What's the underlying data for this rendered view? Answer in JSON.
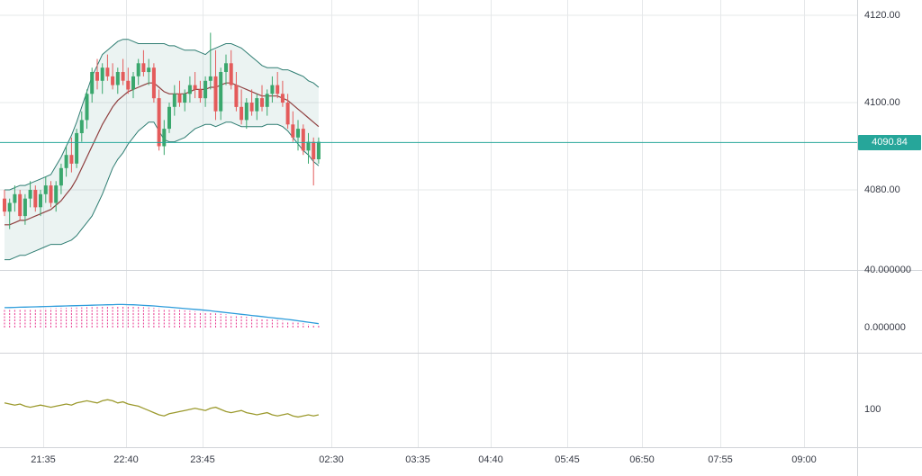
{
  "chart_data": {
    "type": "candlestick",
    "title": "",
    "x_axis": {
      "tick_labels": [
        "21:35",
        "22:40",
        "23:45",
        "02:30",
        "03:35",
        "04:40",
        "05:45",
        "06:50",
        "07:55",
        "09:00"
      ]
    },
    "panels": [
      {
        "name": "price",
        "overlays": [
          "bollinger-bands"
        ],
        "y_ticks": [
          {
            "label": "4120.00",
            "value": 4120
          },
          {
            "label": "4100.00",
            "value": 4100
          },
          {
            "label": "4080.00",
            "value": 4080
          }
        ],
        "last_price_label": "4090.84",
        "last_price": 4090.84,
        "candles_ohlc": [
          [
            4078,
            4080,
            4074,
            4075
          ],
          [
            4075,
            4078,
            4071,
            4077
          ],
          [
            4077,
            4081,
            4075,
            4079
          ],
          [
            4079,
            4080,
            4073,
            4074
          ],
          [
            4074,
            4079,
            4072,
            4078
          ],
          [
            4078,
            4082,
            4076,
            4080
          ],
          [
            4080,
            4081,
            4075,
            4076
          ],
          [
            4076,
            4080,
            4074,
            4079
          ],
          [
            4079,
            4083,
            4077,
            4081
          ],
          [
            4081,
            4082,
            4076,
            4077
          ],
          [
            4077,
            4082,
            4075,
            4081
          ],
          [
            4081,
            4086,
            4079,
            4085
          ],
          [
            4085,
            4090,
            4083,
            4088
          ],
          [
            4088,
            4092,
            4084,
            4086
          ],
          [
            4086,
            4094,
            4085,
            4093
          ],
          [
            4093,
            4098,
            4091,
            4096
          ],
          [
            4096,
            4103,
            4094,
            4102
          ],
          [
            4102,
            4108,
            4100,
            4107
          ],
          [
            4107,
            4110,
            4103,
            4105
          ],
          [
            4105,
            4109,
            4102,
            4108
          ],
          [
            4108,
            4111,
            4105,
            4106
          ],
          [
            4106,
            4109,
            4103,
            4104
          ],
          [
            4104,
            4108,
            4102,
            4107
          ],
          [
            4107,
            4110,
            4104,
            4105
          ],
          [
            4105,
            4108,
            4102,
            4103
          ],
          [
            4103,
            4107,
            4101,
            4106
          ],
          [
            4106,
            4110,
            4104,
            4109
          ],
          [
            4109,
            4112,
            4106,
            4107
          ],
          [
            4107,
            4110,
            4104,
            4108
          ],
          [
            4108,
            4109,
            4100,
            4101
          ],
          [
            4101,
            4103,
            4089,
            4090
          ],
          [
            4090,
            4096,
            4088,
            4094
          ],
          [
            4094,
            4100,
            4093,
            4099
          ],
          [
            4099,
            4104,
            4097,
            4102
          ],
          [
            4102,
            4105,
            4099,
            4100
          ],
          [
            4100,
            4103,
            4098,
            4102
          ],
          [
            4102,
            4106,
            4100,
            4104
          ],
          [
            4104,
            4107,
            4101,
            4103
          ],
          [
            4103,
            4105,
            4100,
            4101
          ],
          [
            4101,
            4106,
            4099,
            4105
          ],
          [
            4105,
            4116,
            4103,
            4106
          ],
          [
            4106,
            4112,
            4096,
            4098
          ],
          [
            4098,
            4108,
            4096,
            4107
          ],
          [
            4107,
            4111,
            4104,
            4109
          ],
          [
            4109,
            4112,
            4103,
            4104
          ],
          [
            4104,
            4107,
            4098,
            4099
          ],
          [
            4099,
            4103,
            4095,
            4096
          ],
          [
            4096,
            4101,
            4094,
            4100
          ],
          [
            4100,
            4103,
            4097,
            4098
          ],
          [
            4098,
            4102,
            4096,
            4101
          ],
          [
            4101,
            4104,
            4098,
            4099
          ],
          [
            4099,
            4103,
            4097,
            4102
          ],
          [
            4102,
            4106,
            4100,
            4104
          ],
          [
            4104,
            4107,
            4101,
            4102
          ],
          [
            4102,
            4105,
            4099,
            4100
          ],
          [
            4100,
            4102,
            4094,
            4095
          ],
          [
            4095,
            4098,
            4091,
            4092
          ],
          [
            4092,
            4096,
            4089,
            4094
          ],
          [
            4094,
            4095,
            4088,
            4089
          ],
          [
            4089,
            4093,
            4086,
            4091
          ],
          [
            4091,
            4092,
            4081,
            4087
          ],
          [
            4087,
            4092,
            4086,
            4091
          ]
        ],
        "bollinger_upper": [
          4080,
          4080,
          4080.5,
          4081,
          4081,
          4081.5,
          4082,
          4082.5,
          4083,
          4083.5,
          4085.5,
          4087.5,
          4090,
          4092.5,
          4095.5,
          4099,
          4102.5,
          4106,
          4108.5,
          4111,
          4112,
          4113,
          4114,
          4114.5,
          4114.5,
          4114,
          4113.5,
          4113.5,
          4113.5,
          4113.5,
          4113.5,
          4113.5,
          4113,
          4113,
          4112.5,
          4112,
          4112,
          4112,
          4111.5,
          4111,
          4112,
          4112.5,
          4113,
          4113.5,
          4113.5,
          4113,
          4112.5,
          4111.5,
          4110.5,
          4109.5,
          4108.5,
          4108,
          4108,
          4108,
          4107.5,
          4107.5,
          4107,
          4106.5,
          4106,
          4105,
          4104.5,
          4103.5
        ],
        "bollinger_basis": [
          4072,
          4072,
          4072.5,
          4073,
          4073,
          4073.5,
          4074,
          4074.5,
          4075,
          4075.5,
          4076.5,
          4077.5,
          4079,
          4080.5,
          4082.5,
          4085,
          4087.5,
          4090,
          4092.5,
          4095,
          4097,
          4099,
          4100.5,
          4101.5,
          4102.5,
          4103,
          4103.5,
          4104,
          4104.5,
          4104.5,
          4103.5,
          4102.5,
          4102,
          4102,
          4102,
          4102,
          4102.5,
          4103,
          4103,
          4103,
          4103.5,
          4103.5,
          4104,
          4104.5,
          4104.5,
          4104,
          4103.5,
          4103,
          4102.5,
          4102,
          4101.5,
          4101.5,
          4101.5,
          4101.5,
          4101,
          4100.5,
          4099.5,
          4098.5,
          4097.5,
          4096.5,
          4095.5,
          4094.5
        ],
        "bollinger_lower": [
          4064,
          4064,
          4064.5,
          4065,
          4065,
          4065.5,
          4066,
          4066.5,
          4067,
          4067.5,
          4067.5,
          4067.5,
          4068,
          4068.5,
          4069.5,
          4071,
          4072.5,
          4074,
          4076.5,
          4079,
          4082,
          4085,
          4087,
          4088.5,
          4090.5,
          4092,
          4093.5,
          4094.5,
          4095.5,
          4095.5,
          4093.5,
          4091.5,
          4091,
          4091,
          4091.5,
          4092,
          4093,
          4094,
          4094.5,
          4095,
          4095,
          4094.5,
          4095,
          4095.5,
          4095.5,
          4095,
          4094.5,
          4094.5,
          4094.5,
          4094.5,
          4094.5,
          4095,
          4095,
          4095,
          4094.5,
          4093.5,
          4092,
          4090.5,
          4089,
          4088,
          4086.5,
          4085.5
        ]
      },
      {
        "name": "oscillator",
        "y_ticks": [
          {
            "label": "40.000000",
            "value": 40
          },
          {
            "label": "0.000000",
            "value": 0
          }
        ],
        "line": [
          13.8,
          13.9,
          14.0,
          14.1,
          14.2,
          14.3,
          14.4,
          14.5,
          14.6,
          14.7,
          14.8,
          14.9,
          15.0,
          15.1,
          15.2,
          15.3,
          15.4,
          15.5,
          15.6,
          15.7,
          15.8,
          15.9,
          16.0,
          16.0,
          15.9,
          15.8,
          15.6,
          15.4,
          15.2,
          15.0,
          14.7,
          14.4,
          14.1,
          13.8,
          13.5,
          13.2,
          12.9,
          12.6,
          12.3,
          12.0,
          11.6,
          11.2,
          10.8,
          10.4,
          10.0,
          9.6,
          9.2,
          8.8,
          8.4,
          8.0,
          7.6,
          7.2,
          6.8,
          6.4,
          6.0,
          5.6,
          5.2,
          4.7,
          4.2,
          3.7,
          3.2,
          2.7
        ],
        "histogram": [
          12.5,
          12.6,
          12.7,
          12.8,
          12.9,
          13.0,
          13.1,
          13.2,
          13.3,
          13.4,
          13.5,
          13.6,
          13.7,
          13.8,
          13.9,
          14.0,
          14.1,
          14.2,
          14.3,
          14.4,
          14.5,
          14.6,
          14.7,
          14.7,
          14.6,
          14.5,
          14.3,
          14.1,
          13.9,
          13.7,
          13.4,
          13.1,
          12.8,
          12.5,
          12.2,
          11.9,
          11.6,
          11.3,
          11.0,
          10.7,
          10.3,
          9.9,
          9.5,
          9.1,
          8.7,
          8.3,
          7.9,
          7.5,
          7.1,
          6.7,
          6.3,
          5.9,
          5.5,
          5.1,
          4.7,
          4.3,
          3.9,
          3.4,
          2.9,
          2.4,
          1.9,
          1.4
        ]
      },
      {
        "name": "lower_indicator",
        "y_ticks": [
          {
            "label": "100",
            "value": 100
          }
        ],
        "line": [
          106,
          105,
          104,
          105,
          103,
          102,
          103,
          104,
          103,
          102,
          103,
          104,
          105,
          104,
          106,
          107,
          108,
          107,
          106,
          108,
          109,
          108,
          106,
          107,
          105,
          104,
          103,
          101,
          99,
          97,
          95,
          94,
          96,
          97,
          98,
          99,
          100,
          101,
          100,
          99,
          101,
          102,
          100,
          98,
          97,
          98,
          99,
          97,
          96,
          95,
          96,
          97,
          95,
          94,
          95,
          96,
          94,
          93,
          94,
          95,
          94,
          95
        ]
      }
    ]
  },
  "colors": {
    "background": "#ffffff",
    "grid": "#e6e8ea",
    "separator": "#d1d4d8",
    "axis_text": "#363a45",
    "up": "#3aa76d",
    "down": "#e45b5b",
    "bollinger_line": "#2e7d72",
    "bollinger_fill": "rgba(57,141,127,0.10)",
    "bollinger_basis": "#8f3f3f",
    "last_price": "#26a69a",
    "oscillator_line": "#2d9cdb",
    "oscillator_histogram": "#e8368f",
    "lower_indicator_line": "#9c9a2e"
  }
}
